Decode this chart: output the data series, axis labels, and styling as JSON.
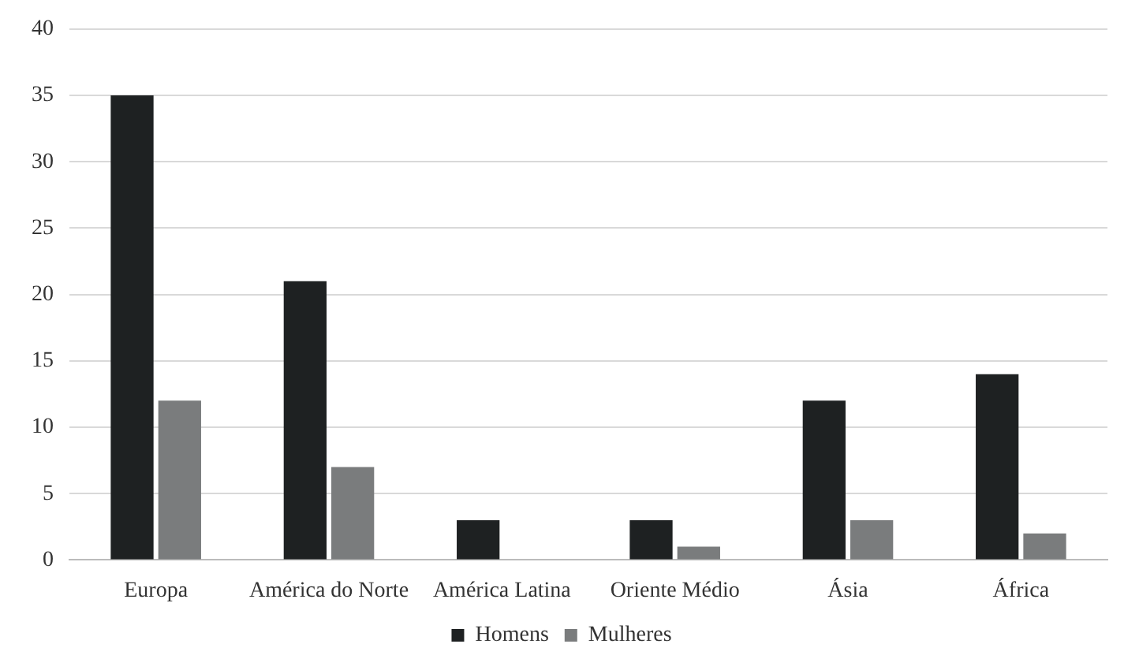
{
  "chart_data": {
    "type": "bar",
    "categories": [
      "Europa",
      "América do Norte",
      "América Latina",
      "Oriente Médio",
      "Ásia",
      "África"
    ],
    "series": [
      {
        "name": "Homens",
        "color": "#1e2122",
        "values": [
          35,
          21,
          3,
          3,
          12,
          14
        ]
      },
      {
        "name": "Mulheres",
        "color": "#7a7c7d",
        "values": [
          12,
          7,
          0,
          1,
          3,
          2
        ]
      }
    ],
    "ylim": [
      0,
      40
    ],
    "yticks": [
      0,
      5,
      10,
      15,
      20,
      25,
      30,
      35,
      40
    ],
    "grid": "y",
    "legend": "bottom"
  }
}
